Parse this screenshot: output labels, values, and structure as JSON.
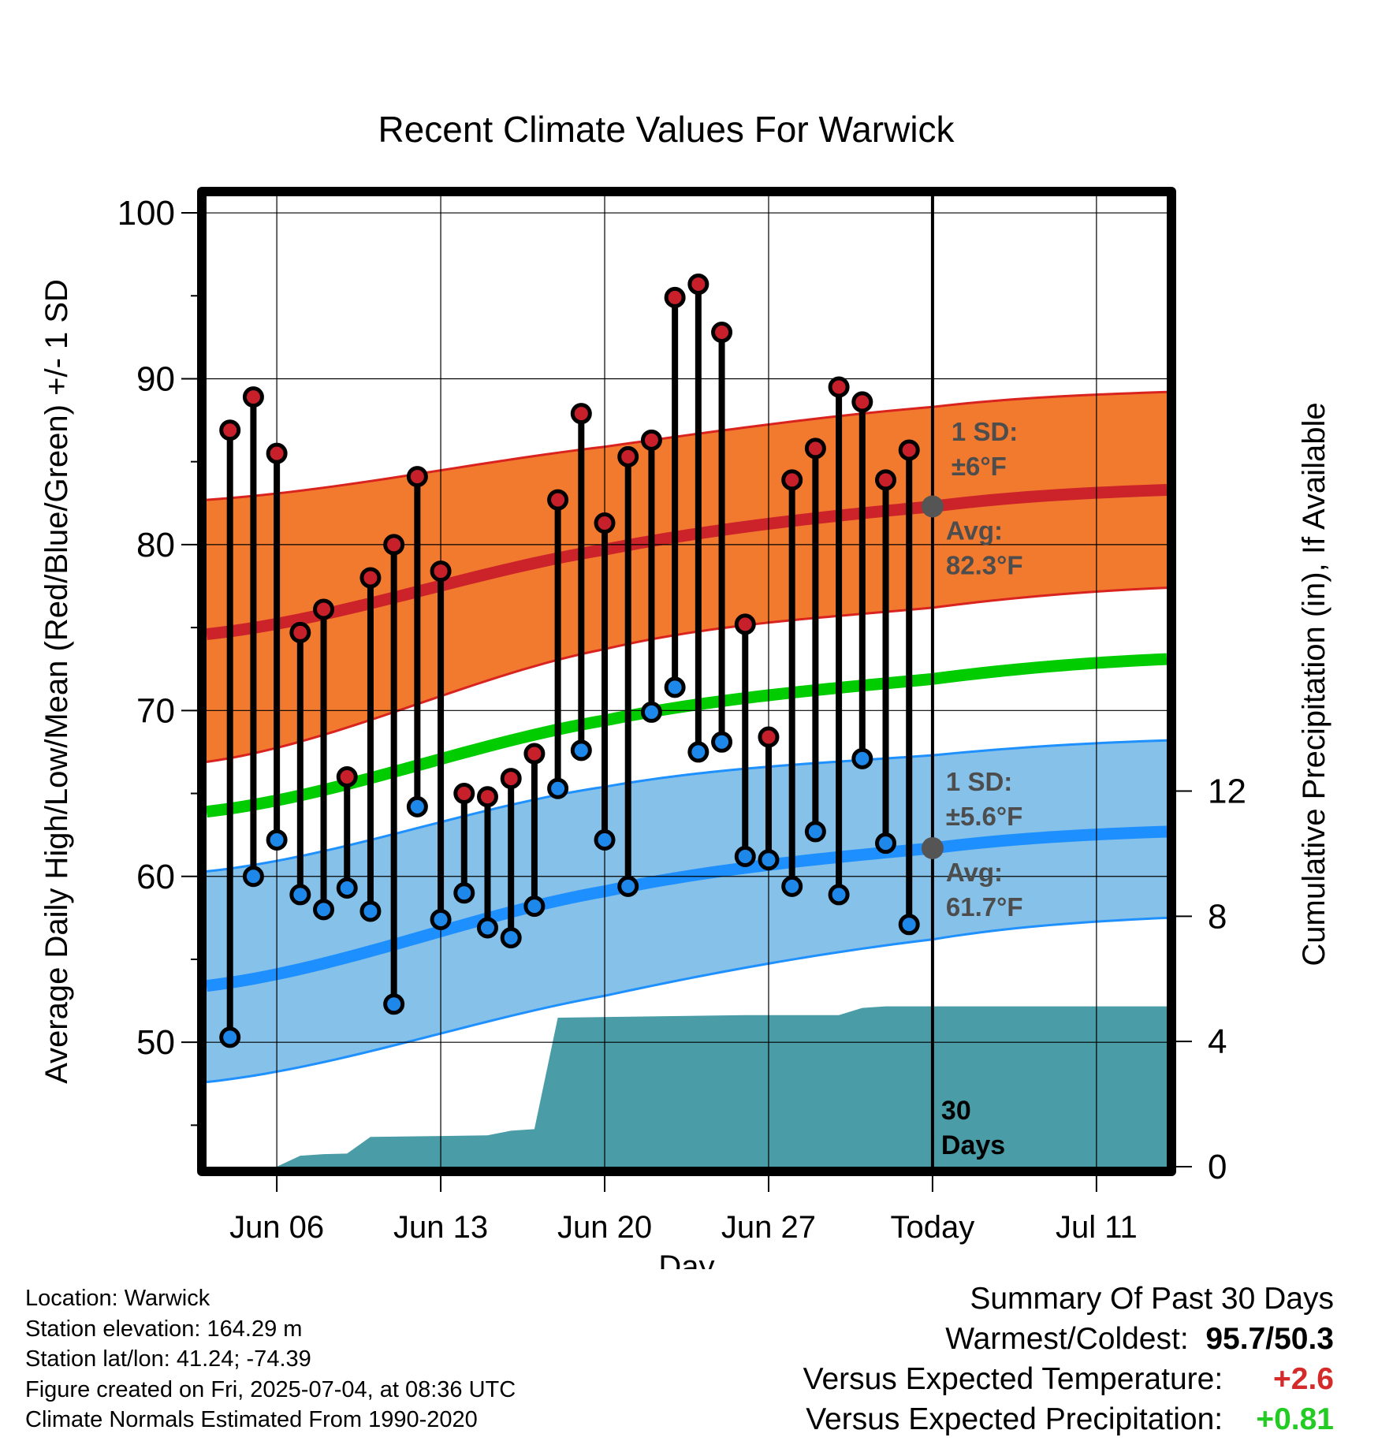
{
  "chart_data": {
    "type": "line",
    "title": "Recent Climate Values For Warwick",
    "xlabel": "Day",
    "ylabel": "Average Daily High/Low/Mean (Red/Blue/Green) +/- 1 SD",
    "y2label": "Cumulative Precipitation (in), If Available",
    "x_range": [
      "2025-06-03",
      "2025-07-14"
    ],
    "ylim": [
      42.5,
      101
    ],
    "y_ticks": [
      50,
      60,
      70,
      80,
      90,
      100
    ],
    "y2lim": [
      0,
      31
    ],
    "y2_ticks": [
      0,
      4,
      8,
      12
    ],
    "x_ticks": [
      {
        "date": "2025-06-06",
        "label": "Jun 06"
      },
      {
        "date": "2025-06-13",
        "label": "Jun 13"
      },
      {
        "date": "2025-06-20",
        "label": "Jun 20"
      },
      {
        "date": "2025-06-27",
        "label": "Jun 27"
      },
      {
        "date": "2025-07-04",
        "label": "Today"
      },
      {
        "date": "2025-07-11",
        "label": "Jul 11"
      }
    ],
    "grid": true,
    "today": "2025-07-04",
    "today_label": [
      "30",
      "Days"
    ],
    "daily": {
      "dates": [
        "2025-06-04",
        "2025-06-05",
        "2025-06-06",
        "2025-06-07",
        "2025-06-08",
        "2025-06-09",
        "2025-06-10",
        "2025-06-11",
        "2025-06-12",
        "2025-06-13",
        "2025-06-14",
        "2025-06-15",
        "2025-06-16",
        "2025-06-17",
        "2025-06-18",
        "2025-06-19",
        "2025-06-20",
        "2025-06-21",
        "2025-06-22",
        "2025-06-23",
        "2025-06-24",
        "2025-06-25",
        "2025-06-26",
        "2025-06-27",
        "2025-06-28",
        "2025-06-29",
        "2025-06-30",
        "2025-07-01",
        "2025-07-02",
        "2025-07-03"
      ],
      "high": [
        86.9,
        88.9,
        85.5,
        74.7,
        76.1,
        66.0,
        78.0,
        80.0,
        84.1,
        78.4,
        65.0,
        64.8,
        65.9,
        67.4,
        82.7,
        87.9,
        81.3,
        85.3,
        86.3,
        94.9,
        95.7,
        92.8,
        75.2,
        68.4,
        83.9,
        85.8,
        89.5,
        88.6,
        83.9,
        85.7
      ],
      "low": [
        50.3,
        60.0,
        62.2,
        58.9,
        58.0,
        59.3,
        57.9,
        52.3,
        64.2,
        57.4,
        59.0,
        56.9,
        56.3,
        58.2,
        65.3,
        67.6,
        62.2,
        59.4,
        69.9,
        71.4,
        67.5,
        68.1,
        61.2,
        61.0,
        59.4,
        62.7,
        58.9,
        67.1,
        62.0,
        57.1
      ]
    },
    "normals": {
      "dates": [
        "2025-06-03",
        "2025-06-20",
        "2025-07-04",
        "2025-07-14"
      ],
      "high_avg": [
        74.6,
        79.7,
        82.3,
        83.3
      ],
      "high_sd_upper": [
        82.7,
        85.9,
        88.3,
        89.2
      ],
      "high_sd_lower": [
        66.9,
        73.7,
        76.2,
        77.4
      ],
      "mean": [
        63.9,
        69.4,
        71.9,
        73.1
      ],
      "low_avg": [
        53.4,
        59.1,
        61.7,
        62.7
      ],
      "low_sd_upper": [
        60.3,
        65.4,
        67.3,
        68.2
      ],
      "low_sd_lower": [
        47.6,
        52.8,
        56.2,
        57.5
      ]
    },
    "precip_cumulative": {
      "dates": [
        "2025-06-06",
        "2025-06-07",
        "2025-06-08",
        "2025-06-09",
        "2025-06-10",
        "2025-06-13",
        "2025-06-15",
        "2025-06-16",
        "2025-06-17",
        "2025-06-18",
        "2025-06-22",
        "2025-06-26",
        "2025-06-30",
        "2025-07-01",
        "2025-07-02",
        "2025-07-14"
      ],
      "values": [
        0.0,
        0.35,
        0.4,
        0.42,
        0.95,
        0.98,
        1.0,
        1.15,
        1.2,
        4.76,
        4.8,
        4.84,
        4.84,
        5.07,
        5.12,
        5.12
      ]
    },
    "annotations": {
      "high_sd": [
        "1 SD:",
        "±6°F"
      ],
      "high_avg": [
        "Avg:",
        "82.3°F"
      ],
      "low_sd": [
        "1 SD:",
        "±5.6°F"
      ],
      "low_avg": [
        "Avg:",
        "61.7°F"
      ]
    },
    "colors": {
      "high_band": "#f27a2f",
      "high_band_edge": "#d9231f",
      "high_avg_line": "#cc2229",
      "mean_line": "#00cc00",
      "low_band": "#85c1e8",
      "low_band_edge": "#1e90ff",
      "low_avg_line": "#1e8fff",
      "precip_fill": "#4a9ca6",
      "high_marker": "#c8202a",
      "low_marker": "#1e88ea",
      "annotation_text": "#4d4d4d",
      "today_marker": "#555555"
    }
  },
  "footer": {
    "location": "Location: Warwick",
    "elevation": "Station elevation: 164.29 m",
    "latlon": "Station lat/lon: 41.24; -74.39",
    "created": "Figure created on Fri, 2025-07-04, at 08:36 UTC",
    "normals": "Climate Normals Estimated From 1990-2020"
  },
  "summary": {
    "title": "Summary Of Past 30 Days",
    "warm_cold_label": "Warmest/Coldest:",
    "warmest": "95.7",
    "coldest": "50.3",
    "temp_label": "Versus Expected Temperature:",
    "temp_value": "+2.6",
    "temp_color": "#d42a2a",
    "precip_label": "Versus Expected Precipitation:",
    "precip_value": "+0.81",
    "precip_color": "#22cc22"
  }
}
